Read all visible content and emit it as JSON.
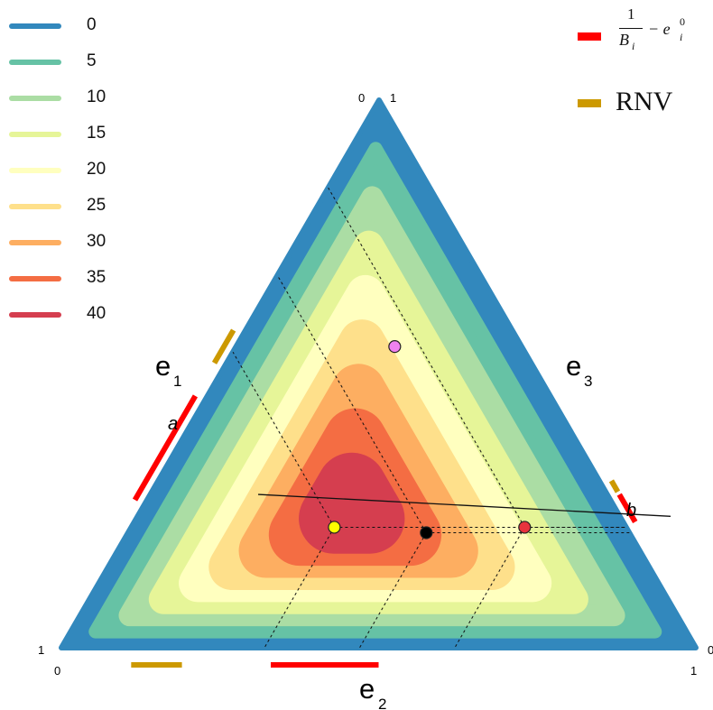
{
  "chart_data": {
    "type": "ternary-contour",
    "contour_levels": [
      0,
      5,
      10,
      15,
      20,
      25,
      30,
      35,
      40
    ],
    "contour_colors": [
      "#3288bd",
      "#66c2a5",
      "#abdda4",
      "#e6f598",
      "#ffffbf",
      "#fee08b",
      "#fdae61",
      "#f46d43",
      "#d53e4f"
    ],
    "axis_labels": {
      "e1": "e",
      "e1_sub": "1",
      "e2": "e",
      "e2_sub": "2",
      "e3": "e",
      "e3_sub": "3"
    },
    "corner_ticks": {
      "top_left": "0",
      "top_right": "1",
      "left_top": "1",
      "left_bottom": "0",
      "right_top": "0",
      "right_bottom": "1"
    },
    "line_labels": {
      "a": "a",
      "b": "b"
    },
    "points": [
      {
        "name": "yellow",
        "color": "#ffff00",
        "e1": 0.46,
        "e2": 0.32,
        "e3": 0.22
      },
      {
        "name": "black",
        "color": "#000000",
        "e1": 0.32,
        "e2": 0.47,
        "e3": 0.21
      },
      {
        "name": "red",
        "color": "#e8333d",
        "e1": 0.16,
        "e2": 0.62,
        "e3": 0.22
      },
      {
        "name": "violet",
        "color": "#ee82ee",
        "e1": 0.2,
        "e2": 0.25,
        "e3": 0.55
      }
    ],
    "line_ab": {
      "a": {
        "e1": 0.55,
        "e2": 0.17,
        "e3": 0.28
      },
      "b": {
        "e1": -0.08,
        "e2": 0.84,
        "e3": 0.24
      }
    },
    "intervals": [
      {
        "kind": "inverse_B_minus_e0",
        "axis": "e1",
        "from": 0.55,
        "to": 0.74
      },
      {
        "kind": "inverse_B_minus_e0",
        "axis": "e2",
        "from": 0.33,
        "to": 0.5
      },
      {
        "kind": "inverse_B_minus_e0",
        "axis": "e3",
        "from": 0.22,
        "to": 0.27
      },
      {
        "kind": "RNV",
        "axis": "e1",
        "from": 0.43,
        "to": 0.49
      },
      {
        "kind": "RNV",
        "axis": "e2",
        "from": 0.11,
        "to": 0.19
      },
      {
        "kind": "RNV",
        "axis": "e3",
        "from": 0.275,
        "to": 0.295
      }
    ]
  },
  "legend_key": {
    "items": [
      {
        "id": "inverse_B_minus_e0",
        "color": "#ff0000"
      },
      {
        "id": "RNV",
        "color": "#cc9900",
        "label": "RNV"
      }
    ],
    "formula": {
      "num": "1",
      "den": "B",
      "den_sub": "i",
      "minus": "− e",
      "e_sub": "i",
      "e_sup": "0"
    }
  }
}
